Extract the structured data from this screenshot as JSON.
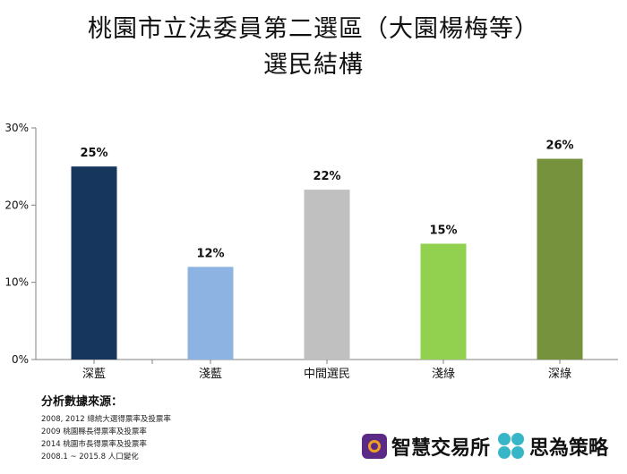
{
  "page": {
    "title_line1": "桃園市立法委員第二選區（大園楊梅等）",
    "title_line2": "選民結構"
  },
  "chart_data": {
    "type": "bar",
    "title": "桃園市立法委員第二選區（大園楊梅等） 選民結構",
    "categories": [
      "深藍",
      "淺藍",
      "中間選民",
      "淺綠",
      "深綠"
    ],
    "values": [
      25,
      12,
      22,
      15,
      26
    ],
    "value_labels": [
      "25%",
      "12%",
      "22%",
      "15%",
      "26%"
    ],
    "colors": [
      "#17365d",
      "#8db3e2",
      "#c0c0c0",
      "#92d050",
      "#76923c"
    ],
    "ylim": [
      0,
      30
    ],
    "yticks": [
      0,
      10,
      20,
      30
    ],
    "ytick_labels": [
      "0%",
      "10%",
      "20%",
      "30%"
    ],
    "grid": false,
    "legend": "none"
  },
  "sources": {
    "heading": "分析數據來源：",
    "lines": [
      "2008, 2012 總統大選得票率及投票率",
      "2009 桃園縣長得票率及投票率",
      "2014 桃園市長得票率及投票率",
      "2008.1 ~ 2015.8 人口變化"
    ]
  },
  "brands": {
    "brand1": {
      "name": "智慧交易所",
      "icon": "zhihui-logo-icon"
    },
    "brand2": {
      "name": "思為策略",
      "icon": "siwei-logo-icon"
    }
  }
}
